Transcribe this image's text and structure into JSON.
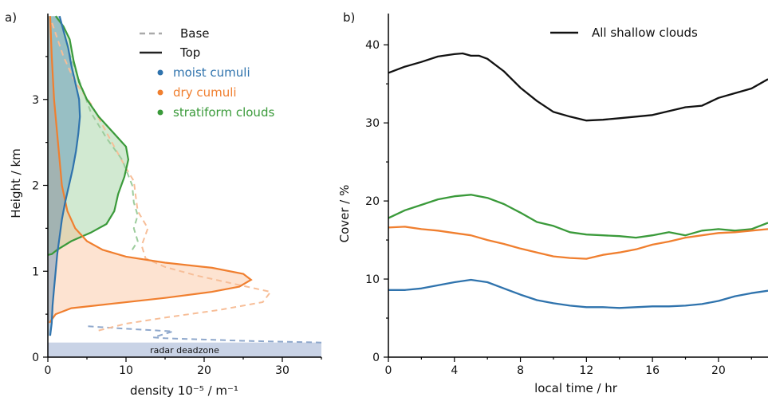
{
  "chart_data": [
    {
      "panel_label": "a)",
      "type": "area",
      "xlabel": "density 10⁻⁵ / m⁻¹",
      "ylabel": "Height / km",
      "xlim": [
        0,
        35
      ],
      "ylim": [
        0,
        4.0
      ],
      "xticks": [
        0,
        10,
        20,
        30
      ],
      "yticks": [
        0,
        1,
        2,
        3
      ],
      "deadzone": {
        "label": "radar deadzone",
        "y_top": 0.17
      },
      "legend": {
        "placement": "top-right",
        "style_entries": [
          {
            "label": "Base",
            "style": "dashed"
          },
          {
            "label": "Top",
            "style": "solid"
          }
        ],
        "color_entries": [
          {
            "label": "moist cumuli",
            "color": "#2f73ad"
          },
          {
            "label": "dry cumuli",
            "color": "#f07f2f"
          },
          {
            "label": "stratiform clouds",
            "color": "#3a9a3a"
          }
        ]
      },
      "series": [
        {
          "name": "moist cumuli",
          "kind": "top",
          "color": "#2f73ad",
          "fill": "#2f73ad",
          "points": [
            [
              0.3,
              0.25
            ],
            [
              0.5,
              0.4
            ],
            [
              0.6,
              0.6
            ],
            [
              0.8,
              0.8
            ],
            [
              1.0,
              1.0
            ],
            [
              1.2,
              1.2
            ],
            [
              1.5,
              1.4
            ],
            [
              1.8,
              1.6
            ],
            [
              2.2,
              1.8
            ],
            [
              2.7,
              2.0
            ],
            [
              3.2,
              2.2
            ],
            [
              3.6,
              2.4
            ],
            [
              3.9,
              2.6
            ],
            [
              4.1,
              2.8
            ],
            [
              4.0,
              3.0
            ],
            [
              3.5,
              3.2
            ],
            [
              3.0,
              3.4
            ],
            [
              2.6,
              3.6
            ],
            [
              2.0,
              3.8
            ],
            [
              1.5,
              3.97
            ]
          ]
        },
        {
          "name": "dry cumuli",
          "kind": "top",
          "color": "#f07f2f",
          "fill": "#f9b98c",
          "points": [
            [
              0.2,
              0.4
            ],
            [
              1.0,
              0.5
            ],
            [
              3.0,
              0.57
            ],
            [
              8.0,
              0.62
            ],
            [
              15.0,
              0.69
            ],
            [
              21.0,
              0.76
            ],
            [
              24.5,
              0.82
            ],
            [
              26.0,
              0.9
            ],
            [
              25.0,
              0.97
            ],
            [
              21.0,
              1.04
            ],
            [
              15.0,
              1.1
            ],
            [
              10.0,
              1.17
            ],
            [
              7.0,
              1.25
            ],
            [
              5.0,
              1.35
            ],
            [
              3.5,
              1.5
            ],
            [
              2.5,
              1.7
            ],
            [
              1.8,
              2.0
            ],
            [
              1.3,
              2.5
            ],
            [
              0.8,
              3.0
            ],
            [
              0.5,
              3.5
            ],
            [
              0.3,
              3.97
            ]
          ]
        },
        {
          "name": "stratiform clouds",
          "kind": "top",
          "color": "#3a9a3a",
          "fill": "#8cc88c",
          "points": [
            [
              0.0,
              1.19
            ],
            [
              0.5,
              1.2
            ],
            [
              1.2,
              1.25
            ],
            [
              3.0,
              1.35
            ],
            [
              5.5,
              1.45
            ],
            [
              7.5,
              1.55
            ],
            [
              8.5,
              1.7
            ],
            [
              9.0,
              1.9
            ],
            [
              9.8,
              2.1
            ],
            [
              10.3,
              2.3
            ],
            [
              10.0,
              2.45
            ],
            [
              8.5,
              2.6
            ],
            [
              6.5,
              2.8
            ],
            [
              5.0,
              3.0
            ],
            [
              4.0,
              3.2
            ],
            [
              3.3,
              3.45
            ],
            [
              2.8,
              3.7
            ],
            [
              2.0,
              3.85
            ],
            [
              1.0,
              3.97
            ]
          ]
        },
        {
          "name": "moist cumuli",
          "kind": "base",
          "color": "#8fa8cc",
          "points": [
            [
              35.0,
              0.17
            ],
            [
              25.0,
              0.19
            ],
            [
              15.0,
              0.22
            ],
            [
              13.5,
              0.23
            ],
            [
              16.0,
              0.3
            ],
            [
              10.0,
              0.33
            ],
            [
              5.0,
              0.36
            ]
          ]
        },
        {
          "name": "dry cumuli",
          "kind": "base",
          "color": "#f7be98",
          "points": [
            [
              6.5,
              0.31
            ],
            [
              10.0,
              0.39
            ],
            [
              15.0,
              0.46
            ],
            [
              22.0,
              0.55
            ],
            [
              27.5,
              0.64
            ],
            [
              28.5,
              0.76
            ],
            [
              25.0,
              0.83
            ],
            [
              19.0,
              0.95
            ],
            [
              15.0,
              1.05
            ],
            [
              12.5,
              1.15
            ],
            [
              12.0,
              1.3
            ],
            [
              12.8,
              1.5
            ],
            [
              11.5,
              1.7
            ],
            [
              11.2,
              1.9
            ],
            [
              11.0,
              2.05
            ],
            [
              10.0,
              2.2
            ],
            [
              8.5,
              2.45
            ],
            [
              7.0,
              2.7
            ],
            [
              5.5,
              2.95
            ],
            [
              3.5,
              3.2
            ],
            [
              2.0,
              3.5
            ],
            [
              0.5,
              3.9
            ]
          ]
        },
        {
          "name": "stratiform clouds",
          "kind": "base",
          "color": "#9ccc9c",
          "points": [
            [
              10.8,
              1.25
            ],
            [
              11.5,
              1.35
            ],
            [
              11.0,
              1.5
            ],
            [
              11.5,
              1.65
            ],
            [
              11.0,
              1.8
            ],
            [
              10.8,
              2.0
            ],
            [
              9.5,
              2.3
            ],
            [
              7.5,
              2.55
            ],
            [
              5.5,
              2.85
            ],
            [
              4.5,
              3.1
            ],
            [
              3.5,
              3.35
            ],
            [
              2.5,
              3.6
            ],
            [
              1.8,
              3.85
            ]
          ]
        }
      ]
    },
    {
      "panel_label": "b)",
      "type": "line",
      "xlabel": "local time / hr",
      "ylabel": "Cover / %",
      "xlim": [
        0,
        23
      ],
      "ylim": [
        0,
        44
      ],
      "xticks": [
        0,
        4,
        8,
        12,
        16,
        20
      ],
      "yticks": [
        0,
        10,
        20,
        30,
        40
      ],
      "legend": {
        "placement": "top-right",
        "entries": [
          {
            "label": "All shallow clouds",
            "color": "#111111"
          }
        ]
      },
      "series": [
        {
          "name": "All shallow clouds",
          "color": "#111111",
          "x": [
            0,
            1,
            2,
            3,
            4,
            4.5,
            5,
            5.5,
            6,
            7,
            8,
            9,
            10,
            11,
            12,
            13,
            14,
            15,
            16,
            17,
            18,
            19,
            20,
            21,
            22,
            23
          ],
          "y": [
            36.4,
            37.2,
            37.8,
            38.5,
            38.8,
            38.9,
            38.6,
            38.6,
            38.2,
            36.6,
            34.5,
            32.8,
            31.4,
            30.8,
            30.3,
            30.4,
            30.6,
            30.8,
            31.0,
            31.5,
            32.0,
            32.2,
            33.2,
            33.8,
            34.4,
            35.6
          ]
        },
        {
          "name": "stratiform clouds",
          "color": "#3a9a3a",
          "x": [
            0,
            1,
            2,
            3,
            4,
            5,
            6,
            7,
            8,
            9,
            10,
            11,
            12,
            13,
            14,
            15,
            16,
            17,
            18,
            19,
            20,
            21,
            22,
            23
          ],
          "y": [
            17.8,
            18.8,
            19.5,
            20.2,
            20.6,
            20.8,
            20.4,
            19.6,
            18.5,
            17.3,
            16.8,
            16.0,
            15.7,
            15.6,
            15.5,
            15.3,
            15.6,
            16.0,
            15.6,
            16.2,
            16.4,
            16.2,
            16.4,
            17.2
          ]
        },
        {
          "name": "dry cumuli",
          "color": "#f07f2f",
          "x": [
            0,
            1,
            2,
            3,
            4,
            5,
            6,
            7,
            8,
            9,
            10,
            11,
            12,
            13,
            14,
            15,
            16,
            17,
            18,
            19,
            20,
            21,
            22,
            23
          ],
          "y": [
            16.6,
            16.7,
            16.4,
            16.2,
            15.9,
            15.6,
            15.0,
            14.5,
            13.9,
            13.4,
            12.9,
            12.7,
            12.6,
            13.1,
            13.4,
            13.8,
            14.4,
            14.8,
            15.3,
            15.6,
            15.9,
            16.0,
            16.2,
            16.4
          ]
        },
        {
          "name": "moist cumuli",
          "color": "#2f73ad",
          "x": [
            0,
            1,
            2,
            3,
            4,
            5,
            6,
            7,
            8,
            9,
            10,
            11,
            12,
            13,
            14,
            15,
            16,
            17,
            18,
            19,
            20,
            21,
            22,
            23
          ],
          "y": [
            8.6,
            8.6,
            8.8,
            9.2,
            9.6,
            9.9,
            9.6,
            8.8,
            8.0,
            7.3,
            6.9,
            6.6,
            6.4,
            6.4,
            6.3,
            6.4,
            6.5,
            6.5,
            6.6,
            6.8,
            7.2,
            7.8,
            8.2,
            8.5
          ]
        }
      ]
    }
  ]
}
